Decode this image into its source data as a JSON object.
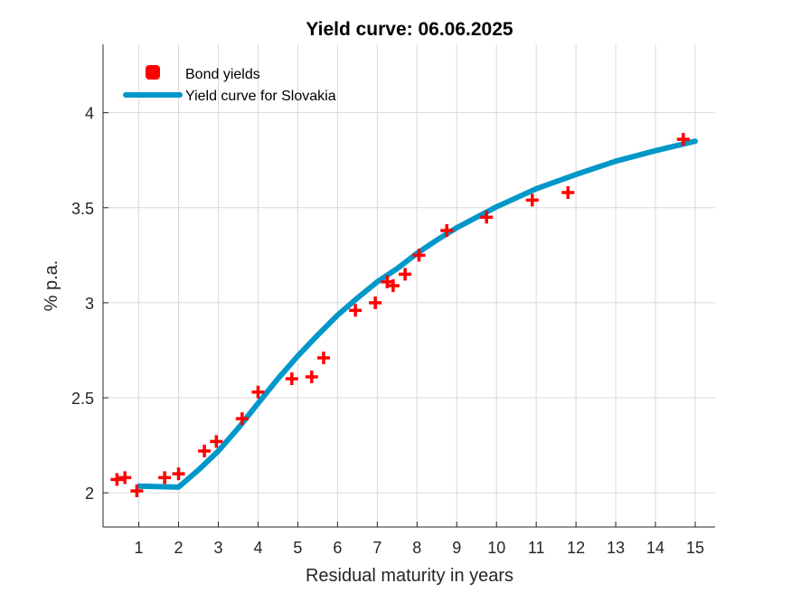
{
  "chart_data": {
    "type": "line",
    "title": "Yield curve: 06.06.2025",
    "xlabel": "Residual maturity in years",
    "ylabel": "% p.a.",
    "xlim": [
      0.1,
      15.5
    ],
    "ylim": [
      1.82,
      4.36
    ],
    "xticks": [
      1,
      2,
      3,
      4,
      5,
      6,
      7,
      8,
      9,
      10,
      11,
      12,
      13,
      14,
      15
    ],
    "yticks": [
      2,
      2.5,
      3,
      3.5,
      4
    ],
    "ytick_labels": [
      "2",
      "2.5",
      "3",
      "3.5",
      "4"
    ],
    "grid": true,
    "legend_position": "top-left",
    "series": [
      {
        "name": "Bond yields",
        "kind": "scatter",
        "marker": "plus",
        "color": "#ff0000",
        "points": [
          {
            "x": 0.45,
            "y": 2.07
          },
          {
            "x": 0.65,
            "y": 2.08
          },
          {
            "x": 0.95,
            "y": 2.01
          },
          {
            "x": 1.65,
            "y": 2.08
          },
          {
            "x": 2.0,
            "y": 2.1
          },
          {
            "x": 2.65,
            "y": 2.22
          },
          {
            "x": 2.95,
            "y": 2.27
          },
          {
            "x": 3.6,
            "y": 2.39
          },
          {
            "x": 4.0,
            "y": 2.53
          },
          {
            "x": 4.85,
            "y": 2.6
          },
          {
            "x": 5.35,
            "y": 2.61
          },
          {
            "x": 5.65,
            "y": 2.71
          },
          {
            "x": 6.45,
            "y": 2.96
          },
          {
            "x": 6.95,
            "y": 3.0
          },
          {
            "x": 7.25,
            "y": 3.11
          },
          {
            "x": 7.4,
            "y": 3.09
          },
          {
            "x": 7.7,
            "y": 3.15
          },
          {
            "x": 8.05,
            "y": 3.25
          },
          {
            "x": 8.75,
            "y": 3.38
          },
          {
            "x": 9.75,
            "y": 3.45
          },
          {
            "x": 10.9,
            "y": 3.54
          },
          {
            "x": 11.8,
            "y": 3.58
          },
          {
            "x": 14.7,
            "y": 3.86
          }
        ]
      },
      {
        "name": "Yield curve for Slovakia",
        "kind": "line",
        "color": "#0097c9",
        "points": [
          {
            "x": 1.0,
            "y": 2.035
          },
          {
            "x": 2.0,
            "y": 2.03
          },
          {
            "x": 2.5,
            "y": 2.12
          },
          {
            "x": 3.0,
            "y": 2.22
          },
          {
            "x": 3.5,
            "y": 2.34
          },
          {
            "x": 4.0,
            "y": 2.47
          },
          {
            "x": 4.5,
            "y": 2.6
          },
          {
            "x": 5.0,
            "y": 2.72
          },
          {
            "x": 5.5,
            "y": 2.83
          },
          {
            "x": 6.0,
            "y": 2.935
          },
          {
            "x": 6.5,
            "y": 3.025
          },
          {
            "x": 7.0,
            "y": 3.11
          },
          {
            "x": 7.5,
            "y": 3.18
          },
          {
            "x": 8.0,
            "y": 3.26
          },
          {
            "x": 8.5,
            "y": 3.33
          },
          {
            "x": 9.0,
            "y": 3.395
          },
          {
            "x": 10.0,
            "y": 3.505
          },
          {
            "x": 11.0,
            "y": 3.6
          },
          {
            "x": 12.0,
            "y": 3.675
          },
          {
            "x": 13.0,
            "y": 3.745
          },
          {
            "x": 14.0,
            "y": 3.8
          },
          {
            "x": 15.0,
            "y": 3.85
          }
        ]
      }
    ]
  }
}
